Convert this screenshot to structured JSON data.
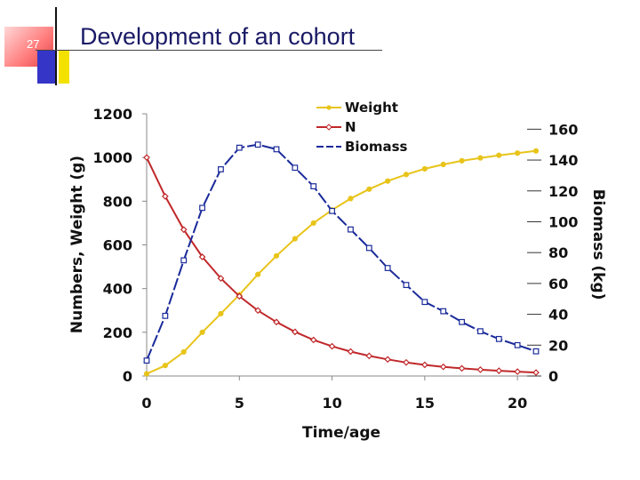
{
  "slide": {
    "number": "27",
    "title": "Development of an cohort"
  },
  "chart_data": {
    "type": "line",
    "title": "",
    "xlabel": "Time/age",
    "ylabel": "Numbers, Weight (g)",
    "y2label": "Biomass (kg)",
    "xlim": [
      0,
      21
    ],
    "ylim": [
      0,
      1200
    ],
    "y2lim": [
      0,
      170
    ],
    "x_ticks": [
      0,
      5,
      10,
      15,
      20
    ],
    "y_ticks": [
      0,
      200,
      400,
      600,
      800,
      1000,
      1200
    ],
    "y2_ticks": [
      0,
      20,
      40,
      60,
      80,
      100,
      120,
      140,
      160
    ],
    "legend_position": "top-right",
    "x": [
      0,
      1,
      2,
      3,
      4,
      5,
      6,
      7,
      8,
      9,
      10,
      11,
      12,
      13,
      14,
      15,
      16,
      17,
      18,
      19,
      20,
      21
    ],
    "series": [
      {
        "name": "Weight",
        "axis": "left",
        "color": "#e8c41a",
        "marker": "dot",
        "values": [
          10,
          48,
          110,
          200,
          285,
          372,
          465,
          550,
          628,
          700,
          760,
          812,
          855,
          892,
          922,
          948,
          968,
          985,
          998,
          1010,
          1020,
          1030
        ]
      },
      {
        "name": "N",
        "axis": "left",
        "color": "#c0282a",
        "marker": "diamond",
        "values": [
          1000,
          822,
          670,
          545,
          447,
          365,
          300,
          247,
          202,
          165,
          136,
          112,
          92,
          76,
          62,
          51,
          42,
          35,
          29,
          24,
          20,
          16
        ]
      },
      {
        "name": "Biomass",
        "axis": "right",
        "color": "#1a2a9a",
        "marker": "square",
        "dashed": true,
        "values": [
          10,
          39,
          75,
          109,
          134,
          148,
          150,
          147,
          135,
          123,
          107,
          95,
          83,
          70,
          59,
          48,
          42,
          35,
          29,
          24,
          20,
          16
        ]
      }
    ]
  }
}
